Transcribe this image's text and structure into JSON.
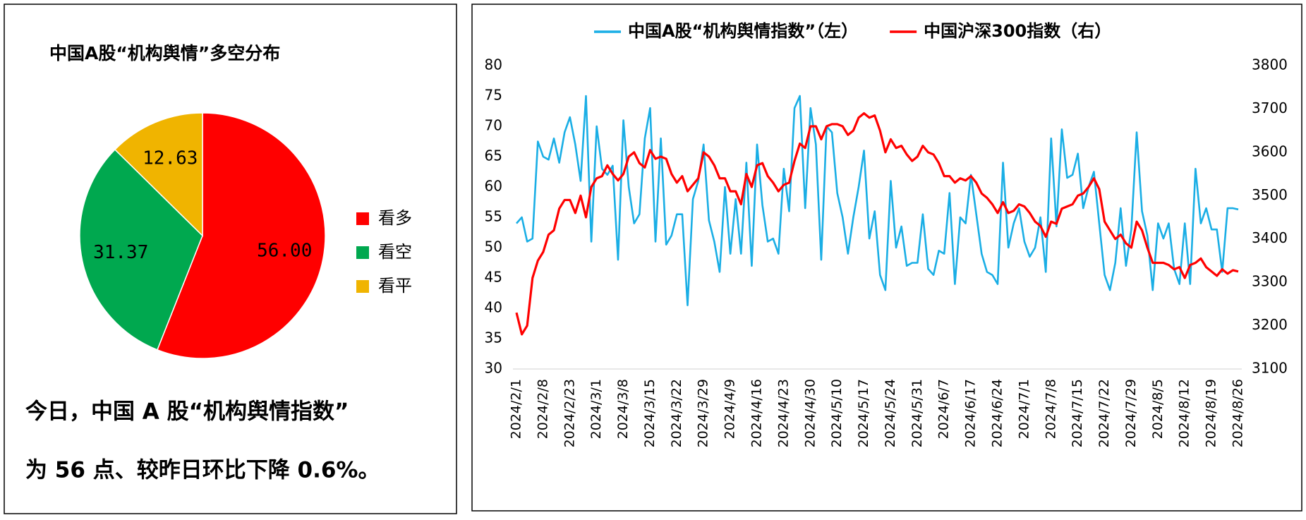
{
  "chart_data": [
    {
      "type": "pie",
      "title": "中国A股“机构舆情”多空分布",
      "categories": [
        "看多",
        "看空",
        "看平"
      ],
      "values": [
        56,
        31.37,
        12.63
      ],
      "value_labels": [
        "56.00",
        "31.37",
        "12.63"
      ],
      "colors": [
        "#ff0000",
        "#00a84f",
        "#f0b400"
      ],
      "legend": "right",
      "note": [
        "今日，中国 A 股“机构舆情指数”",
        "为 56 点、较昨日环比下降 0.6%。"
      ]
    },
    {
      "type": "line",
      "categories": [
        "2024/2/1",
        null,
        null,
        null,
        null,
        "2024/2/8",
        null,
        null,
        null,
        null,
        "2024/2/23",
        null,
        null,
        null,
        null,
        "2024/3/1",
        null,
        null,
        null,
        null,
        "2024/3/8",
        null,
        null,
        null,
        null,
        "2024/3/15",
        null,
        null,
        null,
        null,
        "2024/3/22",
        null,
        null,
        null,
        null,
        "2024/3/29",
        null,
        null,
        null,
        null,
        "2024/4/9",
        null,
        null,
        null,
        null,
        "2024/4/16",
        null,
        null,
        null,
        null,
        "2024/4/23",
        null,
        null,
        null,
        null,
        "2024/4/30",
        null,
        null,
        null,
        null,
        "2024/5/10",
        null,
        null,
        null,
        null,
        "2024/5/17",
        null,
        null,
        null,
        null,
        "2024/5/24",
        null,
        null,
        null,
        null,
        "2024/5/31",
        null,
        null,
        null,
        null,
        "2024/6/7",
        null,
        null,
        null,
        null,
        "2024/6/17",
        null,
        null,
        null,
        null,
        "2024/6/24",
        null,
        null,
        null,
        null,
        "2024/7/1",
        null,
        null,
        null,
        null,
        "2024/7/8",
        null,
        null,
        null,
        null,
        "2024/7/15",
        null,
        null,
        null,
        null,
        "2024/7/22",
        null,
        null,
        null,
        null,
        "2024/7/29",
        null,
        null,
        null,
        null,
        "2024/8/5",
        null,
        null,
        null,
        null,
        "2024/8/12",
        null,
        null,
        null,
        null,
        "2024/8/19",
        null,
        null,
        null,
        null,
        "2024/8/26"
      ],
      "series": [
        {
          "name": "中国A股“机构舆情指数”（左）",
          "color": "#1aaee5",
          "axis": "y",
          "values": [
            54,
            55,
            51,
            51.5,
            67.5,
            65,
            64.5,
            68,
            64,
            69,
            71.5,
            67,
            61,
            75,
            51,
            70,
            63,
            62,
            63.5,
            48,
            71,
            60,
            54,
            55.5,
            68,
            73,
            51,
            68,
            50.5,
            52,
            55.5,
            55.5,
            40.5,
            58,
            61,
            67,
            54.5,
            51,
            46,
            60,
            49,
            58,
            49,
            64,
            47,
            67,
            57,
            51,
            51.5,
            49,
            63,
            56,
            73,
            75,
            56.5,
            73,
            67,
            48,
            70,
            69,
            59,
            55,
            49,
            55,
            60,
            66,
            51.5,
            56,
            45.5,
            43,
            61,
            50,
            53.5,
            47,
            47.5,
            47.5,
            55.5,
            46.5,
            45.5,
            49.5,
            49,
            59,
            44,
            55,
            54,
            62,
            55.5,
            49,
            46,
            45.5,
            44,
            64,
            50,
            54,
            56.5,
            51,
            48.5,
            50,
            55,
            46,
            68,
            53.5,
            69.5,
            61.5,
            62,
            65.5,
            56.5,
            60,
            62.5,
            54,
            45.5,
            43,
            47.5,
            56.5,
            47,
            53,
            69,
            56,
            52,
            43,
            54,
            51.5,
            54,
            46.5,
            44,
            54,
            44,
            63,
            54,
            56.5,
            53,
            53,
            46,
            56.5,
            56.5,
            56.3
          ]
        },
        {
          "name": "中国沪深300指数（右）",
          "color": "#ff0000",
          "axis": "y2",
          "values": [
            3230,
            3180,
            3200,
            3310,
            3350,
            3370,
            3410,
            3420,
            3470,
            3490,
            3490,
            3460,
            3500,
            3450,
            3520,
            3540,
            3545,
            3570,
            3550,
            3535,
            3550,
            3590,
            3600,
            3575,
            3565,
            3605,
            3585,
            3590,
            3585,
            3550,
            3530,
            3545,
            3510,
            3525,
            3540,
            3600,
            3590,
            3570,
            3540,
            3540,
            3510,
            3510,
            3480,
            3550,
            3520,
            3570,
            3575,
            3545,
            3530,
            3510,
            3525,
            3530,
            3580,
            3620,
            3610,
            3660,
            3660,
            3630,
            3660,
            3665,
            3665,
            3660,
            3640,
            3650,
            3680,
            3690,
            3680,
            3685,
            3650,
            3600,
            3630,
            3610,
            3615,
            3595,
            3580,
            3590,
            3615,
            3600,
            3595,
            3575,
            3545,
            3545,
            3530,
            3540,
            3535,
            3545,
            3530,
            3505,
            3495,
            3480,
            3460,
            3485,
            3460,
            3465,
            3480,
            3475,
            3460,
            3440,
            3430,
            3405,
            3440,
            3435,
            3470,
            3475,
            3480,
            3500,
            3505,
            3520,
            3540,
            3515,
            3440,
            3420,
            3400,
            3410,
            3390,
            3380,
            3440,
            3420,
            3380,
            3345,
            3345,
            3345,
            3340,
            3330,
            3335,
            3310,
            3340,
            3345,
            3355,
            3335,
            3325,
            3315,
            3330,
            3320,
            3328,
            3325
          ]
        }
      ],
      "ylim": [
        30,
        80
      ],
      "yticks": [
        30,
        35,
        40,
        45,
        50,
        55,
        60,
        65,
        70,
        75,
        80
      ],
      "y2lim": [
        3100,
        3800
      ],
      "y2ticks": [
        3100,
        3200,
        3300,
        3400,
        3500,
        3600,
        3700,
        3800
      ],
      "legend": "top",
      "grid": false
    }
  ]
}
